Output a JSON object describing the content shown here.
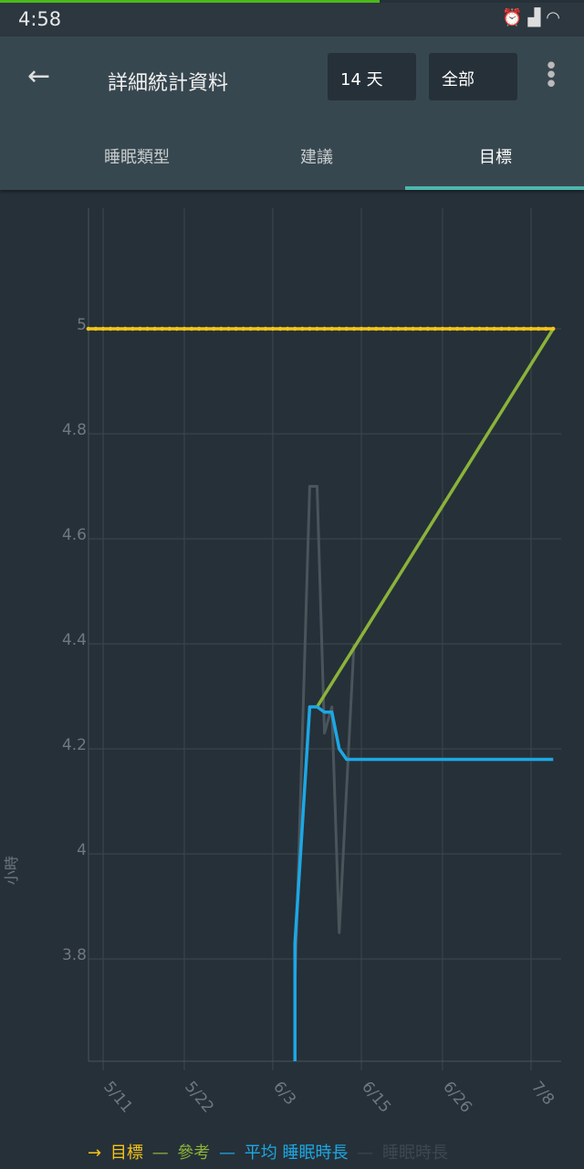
{
  "status": {
    "time": "4:58",
    "icons": [
      "alarm-icon",
      "hd-signal-icon",
      "wifi-icon"
    ]
  },
  "appbar": {
    "title": "詳細統計資料",
    "range": "14 天",
    "filter": "全部"
  },
  "tabs": [
    {
      "label": "睡眠類型"
    },
    {
      "label": "建議"
    },
    {
      "label": "目標",
      "active": true
    }
  ],
  "colors": {
    "goal": "#f5c518",
    "reference": "#8bb33a",
    "average": "#1ca8e3",
    "duration": "#4a545b",
    "accent": "#4db6ac"
  },
  "chart_data": {
    "type": "line",
    "ylabel": "小時",
    "ylim": [
      3.6,
      5.23
    ],
    "yticks": [
      "3.8",
      "4",
      "4.2",
      "4.4",
      "4.6",
      "4.8",
      "5"
    ],
    "xticks": [
      "5/11",
      "5/22",
      "6/3",
      "6/15",
      "6/26",
      "7/8"
    ],
    "grid": true,
    "legend_position": "bottom",
    "series": [
      {
        "name": "目標",
        "color": "#f5c518",
        "markers": true,
        "points": [
          [
            "5/9",
            5.0
          ],
          [
            "7/11",
            5.0
          ]
        ]
      },
      {
        "name": "參考",
        "color": "#8bb33a",
        "points": [
          [
            "6/9",
            4.28
          ],
          [
            "7/11",
            5.0
          ]
        ]
      },
      {
        "name": "平均 睡眠時長",
        "color": "#1ca8e3",
        "points": [
          [
            "6/6",
            3.5
          ],
          [
            "6/6",
            3.83
          ],
          [
            "6/8",
            4.28
          ],
          [
            "6/9",
            4.28
          ],
          [
            "6/10",
            4.27
          ],
          [
            "6/11",
            4.27
          ],
          [
            "6/12",
            4.2
          ],
          [
            "6/13",
            4.18
          ],
          [
            "7/11",
            4.18
          ]
        ]
      },
      {
        "name": "睡眠時長",
        "color": "#4a545b",
        "points": [
          [
            "6/6",
            3.75
          ],
          [
            "6/8",
            4.7
          ],
          [
            "6/9",
            4.7
          ],
          [
            "6/10",
            4.23
          ],
          [
            "6/11",
            4.28
          ],
          [
            "6/12",
            3.85
          ],
          [
            "6/14",
            4.4
          ]
        ]
      }
    ]
  }
}
